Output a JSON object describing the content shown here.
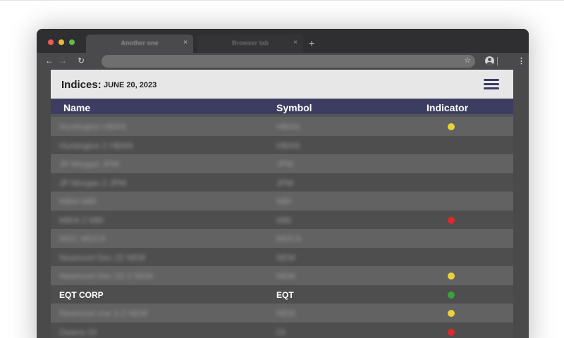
{
  "browser": {
    "tabs": [
      {
        "title": "Another one",
        "active": true
      },
      {
        "title": "Browser tab",
        "active": false
      }
    ],
    "new_tab_symbol": "+",
    "close_symbol": "×"
  },
  "app": {
    "title_label": "Indices:",
    "date": "JUNE 20, 2023"
  },
  "table": {
    "headers": {
      "name": "Name",
      "symbol": "Symbol",
      "indicator": "Indicator"
    },
    "rows": [
      {
        "name": "Huntington HBAN",
        "symbol": "HBAN",
        "indicator": "yellow",
        "blurred": true
      },
      {
        "name": "Huntington 2 HBAN",
        "symbol": "HBAN",
        "indicator": null,
        "blurred": true
      },
      {
        "name": "JP Morgan JPM",
        "symbol": "JPM",
        "indicator": null,
        "blurred": true
      },
      {
        "name": "JP Morgan 2 JPM",
        "symbol": "JPM",
        "indicator": null,
        "blurred": true
      },
      {
        "name": "MBIA MBI",
        "symbol": "MBI",
        "indicator": null,
        "blurred": true
      },
      {
        "name": "MBIA 2 MBI",
        "symbol": "MBI",
        "indicator": "red",
        "blurred": true
      },
      {
        "name": "MDC MDCA",
        "symbol": "MDCA",
        "indicator": null,
        "blurred": true
      },
      {
        "name": "Newmont Dec 22 NEM",
        "symbol": "NEM",
        "indicator": null,
        "blurred": true
      },
      {
        "name": "Newmont Dec 22-2 NEM",
        "symbol": "NEM",
        "indicator": "yellow",
        "blurred": true
      },
      {
        "name": "EQT CORP",
        "symbol": "EQT",
        "indicator": "green",
        "blurred": false
      },
      {
        "name": "Newmont one 2-2 NEM",
        "symbol": "NEM",
        "indicator": "yellow",
        "blurred": true
      },
      {
        "name": "Owens OI",
        "symbol": "OI",
        "indicator": "red",
        "blurred": true
      }
    ]
  },
  "colors": {
    "header_bar": "#3d3d62",
    "indicator_yellow": "#e9d13b",
    "indicator_red": "#e3262b",
    "indicator_green": "#39a33a"
  },
  "icons": {
    "back": "arrow-left-icon",
    "forward": "arrow-right-icon",
    "reload": "reload-icon",
    "bookmark": "star-icon",
    "profile": "profile-icon",
    "browser_menu": "kebab-menu-icon",
    "app_menu": "hamburger-menu-icon"
  }
}
